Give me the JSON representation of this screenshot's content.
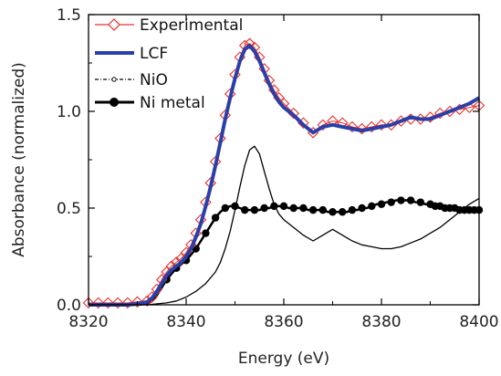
{
  "chart_data": {
    "type": "line",
    "title": "",
    "xlabel": "Energy (eV)",
    "ylabel": "Absorbance (normalized)",
    "xlim": [
      8320,
      8400
    ],
    "ylim": [
      0.0,
      1.5
    ],
    "x_ticks": [
      8320,
      8340,
      8360,
      8380,
      8400
    ],
    "x_tick_labels": [
      "8320",
      "8340",
      "8360",
      "8380",
      "8400"
    ],
    "y_ticks": [
      0.0,
      0.5,
      1.0,
      1.5
    ],
    "y_tick_labels": [
      "0.0",
      "0.5",
      "1.0",
      "1.5"
    ],
    "legend_position": "top-left",
    "grid": false,
    "series": [
      {
        "name": "Experimental",
        "color": "#e8302a",
        "marker": "diamond-open",
        "x": [
          8320,
          8322,
          8324,
          8326,
          8328,
          8330,
          8332,
          8333,
          8334,
          8335,
          8336,
          8337,
          8338,
          8339,
          8340,
          8341,
          8342,
          8343,
          8344,
          8345,
          8346,
          8347,
          8348,
          8349,
          8350,
          8351,
          8352,
          8353,
          8354,
          8355,
          8356,
          8357,
          8358,
          8359,
          8360,
          8362,
          8364,
          8366,
          8368,
          8370,
          8372,
          8374,
          8376,
          8378,
          8380,
          8382,
          8384,
          8386,
          8388,
          8390,
          8392,
          8394,
          8396,
          8398,
          8400
        ],
        "y": [
          0.01,
          0.01,
          0.01,
          0.01,
          0.01,
          0.015,
          0.02,
          0.04,
          0.08,
          0.13,
          0.17,
          0.2,
          0.22,
          0.24,
          0.27,
          0.31,
          0.37,
          0.44,
          0.53,
          0.63,
          0.74,
          0.86,
          0.98,
          1.09,
          1.19,
          1.28,
          1.34,
          1.35,
          1.33,
          1.28,
          1.22,
          1.16,
          1.11,
          1.07,
          1.04,
          0.99,
          0.94,
          0.89,
          0.93,
          0.95,
          0.94,
          0.92,
          0.91,
          0.92,
          0.93,
          0.93,
          0.95,
          0.96,
          0.96,
          0.97,
          0.99,
          1.0,
          1.01,
          1.02,
          1.03
        ]
      },
      {
        "name": "LCF",
        "color": "#2b3fa8",
        "marker": "none",
        "x": [
          8320,
          8322,
          8324,
          8326,
          8328,
          8330,
          8332,
          8333,
          8334,
          8335,
          8336,
          8337,
          8338,
          8339,
          8340,
          8341,
          8342,
          8343,
          8344,
          8345,
          8346,
          8347,
          8348,
          8349,
          8350,
          8351,
          8352,
          8353,
          8354,
          8355,
          8356,
          8357,
          8358,
          8359,
          8360,
          8362,
          8364,
          8366,
          8368,
          8370,
          8372,
          8374,
          8376,
          8378,
          8380,
          8382,
          8384,
          8386,
          8388,
          8390,
          8392,
          8394,
          8396,
          8398,
          8400
        ],
        "y": [
          0.0,
          0.0,
          0.0,
          0.0,
          0.0,
          0.005,
          0.015,
          0.035,
          0.07,
          0.11,
          0.15,
          0.18,
          0.2,
          0.22,
          0.25,
          0.29,
          0.35,
          0.42,
          0.51,
          0.61,
          0.72,
          0.84,
          0.96,
          1.07,
          1.17,
          1.26,
          1.32,
          1.34,
          1.31,
          1.26,
          1.2,
          1.14,
          1.09,
          1.05,
          1.02,
          0.98,
          0.93,
          0.89,
          0.92,
          0.93,
          0.92,
          0.91,
          0.9,
          0.91,
          0.92,
          0.93,
          0.95,
          0.97,
          0.96,
          0.96,
          0.98,
          1.0,
          1.02,
          1.04,
          1.07
        ]
      },
      {
        "name": "NiO",
        "color": "#000000",
        "marker": "small-open-circle",
        "x": [
          8320,
          8324,
          8328,
          8332,
          8336,
          8338,
          8340,
          8342,
          8344,
          8346,
          8347,
          8348,
          8349,
          8350,
          8351,
          8352,
          8353,
          8354,
          8355,
          8356,
          8357,
          8358,
          8359,
          8360,
          8361,
          8362,
          8364,
          8366,
          8368,
          8370,
          8372,
          8374,
          8376,
          8378,
          8380,
          8382,
          8384,
          8386,
          8388,
          8390,
          8392,
          8394,
          8396,
          8398,
          8400
        ],
        "y": [
          0.0,
          0.0,
          0.0,
          0.0,
          0.01,
          0.02,
          0.04,
          0.07,
          0.11,
          0.17,
          0.22,
          0.29,
          0.38,
          0.49,
          0.61,
          0.72,
          0.8,
          0.82,
          0.78,
          0.69,
          0.6,
          0.52,
          0.47,
          0.44,
          0.42,
          0.4,
          0.36,
          0.33,
          0.36,
          0.39,
          0.36,
          0.33,
          0.31,
          0.3,
          0.29,
          0.29,
          0.3,
          0.32,
          0.34,
          0.37,
          0.4,
          0.44,
          0.48,
          0.52,
          0.55
        ]
      },
      {
        "name": "Ni metal",
        "color": "#000000",
        "marker": "filled-circle",
        "x": [
          8320,
          8322,
          8324,
          8326,
          8328,
          8330,
          8332,
          8333,
          8334,
          8335,
          8336,
          8337,
          8338,
          8339,
          8340,
          8341,
          8342,
          8343,
          8344,
          8345,
          8346,
          8347,
          8348,
          8349,
          8350,
          8351,
          8352,
          8353,
          8354,
          8355,
          8356,
          8357,
          8358,
          8359,
          8360,
          8361,
          8362,
          8363,
          8364,
          8365,
          8366,
          8367,
          8368,
          8369,
          8370,
          8371,
          8372,
          8373,
          8374,
          8375,
          8376,
          8377,
          8378,
          8379,
          8380,
          8381,
          8382,
          8383,
          8384,
          8385,
          8386,
          8387,
          8388,
          8389,
          8390,
          8391,
          8392,
          8393,
          8394,
          8395,
          8396,
          8397,
          8398,
          8399,
          8400
        ],
        "y": [
          0.0,
          0.0,
          0.0,
          0.0,
          0.0,
          0.0,
          0.005,
          0.02,
          0.05,
          0.09,
          0.13,
          0.16,
          0.19,
          0.21,
          0.23,
          0.26,
          0.29,
          0.33,
          0.37,
          0.41,
          0.45,
          0.48,
          0.5,
          0.51,
          0.51,
          0.5,
          0.49,
          0.49,
          0.49,
          0.49,
          0.5,
          0.5,
          0.51,
          0.51,
          0.51,
          0.5,
          0.5,
          0.5,
          0.5,
          0.49,
          0.49,
          0.49,
          0.49,
          0.48,
          0.48,
          0.48,
          0.48,
          0.48,
          0.49,
          0.49,
          0.5,
          0.5,
          0.51,
          0.52,
          0.52,
          0.53,
          0.53,
          0.54,
          0.54,
          0.54,
          0.54,
          0.53,
          0.53,
          0.52,
          0.52,
          0.51,
          0.51,
          0.5,
          0.5,
          0.5,
          0.49,
          0.49,
          0.49,
          0.49,
          0.49
        ]
      }
    ]
  }
}
